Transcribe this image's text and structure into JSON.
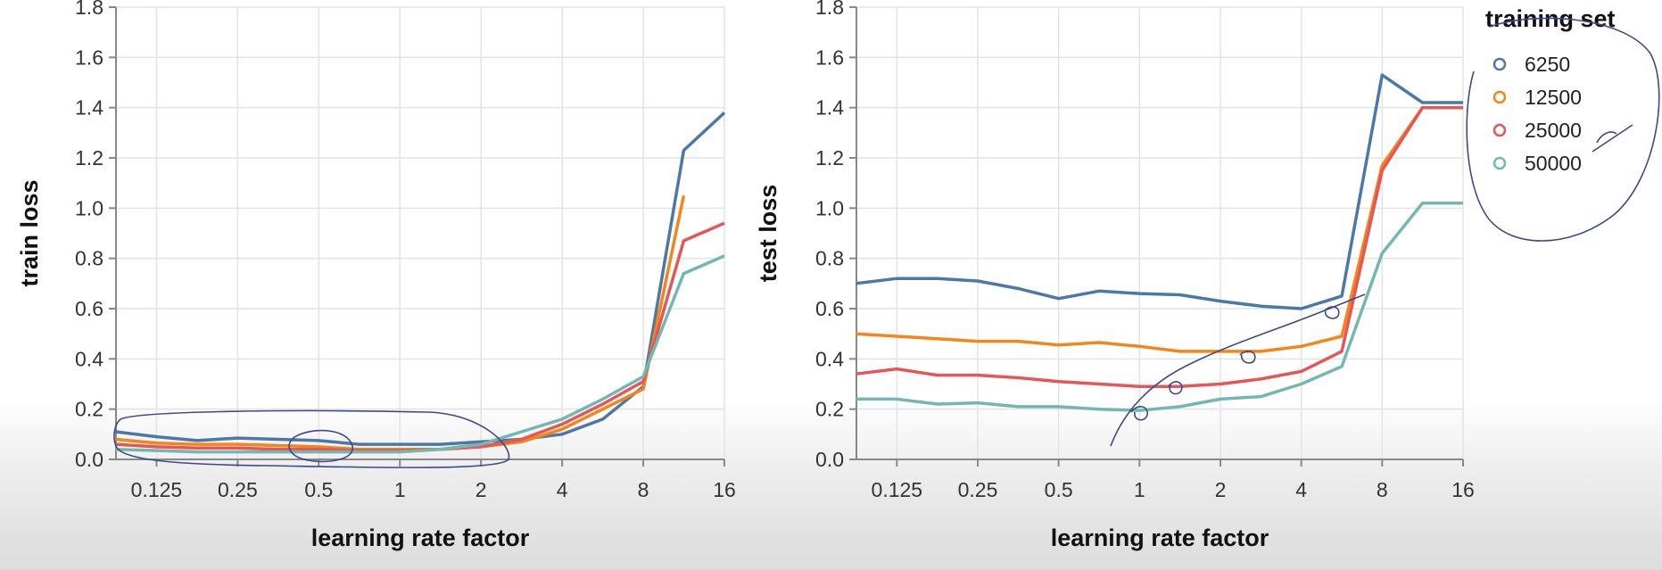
{
  "colors": {
    "6250": "#4c78a8",
    "12500": "#f58518",
    "25000": "#e45756",
    "50000": "#72b7b2",
    "annotation": "#3c4a8a"
  },
  "legend": {
    "title": "training set",
    "items": [
      "6250",
      "12500",
      "25000",
      "50000"
    ]
  },
  "chart_data": [
    {
      "type": "line",
      "xlabel": "learning rate factor",
      "ylabel": "train loss",
      "xscale": "log2",
      "xlim": [
        0.0884,
        16
      ],
      "ylim": [
        0,
        1.8
      ],
      "xticks": [
        "0.125",
        "0.25",
        "0.5",
        "1",
        "2",
        "4",
        "8",
        "16"
      ],
      "yticks": [
        "0.0",
        "0.2",
        "0.4",
        "0.6",
        "0.8",
        "1.0",
        "1.2",
        "1.4",
        "1.6",
        "1.8"
      ],
      "x": [
        0.088,
        0.125,
        0.177,
        0.25,
        0.354,
        0.5,
        0.707,
        1,
        1.414,
        2,
        2.83,
        4,
        5.66,
        8,
        11.3,
        16
      ],
      "grid": true,
      "series": [
        {
          "name": "6250",
          "values": [
            0.11,
            0.09,
            0.075,
            0.085,
            0.08,
            0.075,
            0.06,
            0.06,
            0.06,
            0.07,
            0.08,
            0.1,
            0.16,
            0.29,
            1.23,
            1.38
          ]
        },
        {
          "name": "12500",
          "values": [
            0.08,
            0.065,
            0.06,
            0.06,
            0.055,
            0.05,
            0.04,
            0.04,
            0.04,
            0.05,
            0.07,
            0.12,
            0.2,
            0.28,
            1.05,
            null
          ]
        },
        {
          "name": "25000",
          "values": [
            0.06,
            0.05,
            0.045,
            0.045,
            0.04,
            0.04,
            0.035,
            0.035,
            0.04,
            0.05,
            0.08,
            0.14,
            0.22,
            0.31,
            0.87,
            0.94
          ]
        },
        {
          "name": "50000",
          "values": [
            0.04,
            0.035,
            0.03,
            0.03,
            0.03,
            0.03,
            0.03,
            0.03,
            0.04,
            0.06,
            0.11,
            0.16,
            0.24,
            0.33,
            0.74,
            0.81
          ]
        }
      ]
    },
    {
      "type": "line",
      "xlabel": "learning rate factor",
      "ylabel": "test loss",
      "xscale": "log2",
      "xlim": [
        0.0884,
        16
      ],
      "ylim": [
        0,
        1.8
      ],
      "xticks": [
        "0.125",
        "0.25",
        "0.5",
        "1",
        "2",
        "4",
        "8",
        "16"
      ],
      "yticks": [
        "0.0",
        "0.2",
        "0.4",
        "0.6",
        "0.8",
        "1.0",
        "1.2",
        "1.4",
        "1.6",
        "1.8"
      ],
      "x": [
        0.088,
        0.125,
        0.177,
        0.25,
        0.354,
        0.5,
        0.707,
        1,
        1.414,
        2,
        2.83,
        4,
        5.66,
        8,
        11.3,
        16
      ],
      "grid": true,
      "series": [
        {
          "name": "6250",
          "values": [
            0.7,
            0.72,
            0.72,
            0.71,
            0.68,
            0.64,
            0.67,
            0.66,
            0.655,
            0.63,
            0.61,
            0.6,
            0.65,
            1.53,
            1.42,
            1.42
          ]
        },
        {
          "name": "12500",
          "values": [
            0.5,
            0.49,
            0.48,
            0.47,
            0.47,
            0.455,
            0.465,
            0.45,
            0.43,
            0.43,
            0.43,
            0.45,
            0.49,
            1.17,
            1.4,
            1.4
          ]
        },
        {
          "name": "25000",
          "values": [
            0.34,
            0.36,
            0.335,
            0.335,
            0.325,
            0.31,
            0.3,
            0.29,
            0.29,
            0.3,
            0.32,
            0.35,
            0.43,
            1.15,
            1.4,
            1.4
          ]
        },
        {
          "name": "50000",
          "values": [
            0.24,
            0.24,
            0.22,
            0.225,
            0.21,
            0.21,
            0.2,
            0.195,
            0.21,
            0.24,
            0.25,
            0.3,
            0.37,
            0.82,
            1.02,
            1.02
          ]
        }
      ]
    }
  ]
}
